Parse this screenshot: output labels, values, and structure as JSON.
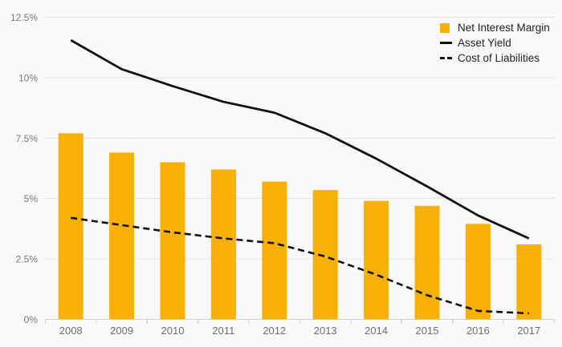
{
  "chart_data": {
    "type": "combo-bar-line",
    "title": "",
    "xlabel": "",
    "ylabel": "",
    "categories": [
      "2008",
      "2009",
      "2010",
      "2011",
      "2012",
      "2013",
      "2014",
      "2015",
      "2016",
      "2017"
    ],
    "series": [
      {
        "name": "Net Interest Margin",
        "type": "bar",
        "color": "#f9b005",
        "values": [
          7.7,
          6.9,
          6.5,
          6.2,
          5.7,
          5.35,
          4.9,
          4.7,
          3.95,
          3.1
        ]
      },
      {
        "name": "Asset Yield",
        "type": "line",
        "line_style": "solid",
        "color": "#111111",
        "values": [
          11.55,
          10.35,
          9.65,
          9.0,
          8.55,
          7.7,
          6.65,
          5.5,
          4.3,
          3.35
        ]
      },
      {
        "name": "Cost of Liabilities",
        "type": "line",
        "line_style": "dashed",
        "color": "#111111",
        "values": [
          4.2,
          3.9,
          3.6,
          3.35,
          3.15,
          2.6,
          1.85,
          1.0,
          0.35,
          0.25
        ]
      }
    ],
    "ylim": [
      0,
      12.5
    ],
    "y_ticks": [
      {
        "value": 0,
        "label": "0%"
      },
      {
        "value": 2.5,
        "label": "2.5%"
      },
      {
        "value": 5,
        "label": "5%"
      },
      {
        "value": 7.5,
        "label": "7.5%"
      },
      {
        "value": 10,
        "label": "10%"
      },
      {
        "value": 12.5,
        "label": "12.5%"
      }
    ],
    "grid": true,
    "legend_position": "top-right"
  },
  "legend": {
    "items": [
      {
        "label": "Net Interest Margin",
        "swatch": "square"
      },
      {
        "label": "Asset Yield",
        "swatch": "solid-line"
      },
      {
        "label": "Cost of Liabilities",
        "swatch": "dashed-line"
      }
    ]
  },
  "colors": {
    "background": "#f9f9f9",
    "bar": "#f9b005",
    "line": "#111111",
    "gridline": "#e4e4e4",
    "axis": "#c9d3e3",
    "y_tick_text": "#77787a",
    "x_tick_text": "#6d6e70",
    "legend_text": "#222222"
  }
}
